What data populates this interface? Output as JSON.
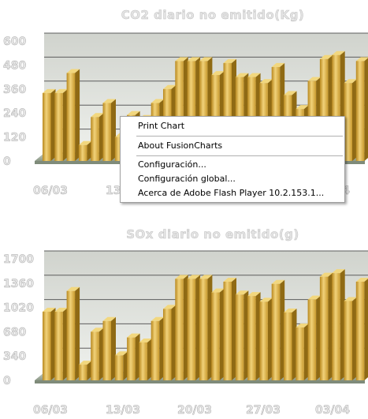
{
  "chart_data": [
    {
      "type": "bar",
      "title": "CO2 diario no emitido(Kg)",
      "ylim": [
        0,
        600
      ],
      "yticks": [
        "0",
        "120",
        "240",
        "360",
        "480",
        "600"
      ],
      "x_tick_labels": [
        "06/03",
        "13/03",
        "20/03",
        "27/03",
        "03/04"
      ],
      "values": [
        340,
        340,
        440,
        80,
        220,
        290,
        120,
        230,
        210,
        290,
        360,
        500,
        500,
        500,
        430,
        490,
        420,
        420,
        390,
        470,
        330,
        260,
        400,
        510,
        530,
        390,
        500,
        30
      ]
    },
    {
      "type": "bar",
      "title": "SOx diario no emitido(g)",
      "ylim": [
        0,
        1700
      ],
      "yticks": [
        "0",
        "340",
        "680",
        "1020",
        "1360",
        "1700"
      ],
      "x_tick_labels": [
        "06/03",
        "13/03",
        "20/03",
        "27/03",
        "03/04"
      ],
      "values": [
        960,
        960,
        1250,
        220,
        680,
        830,
        350,
        600,
        530,
        830,
        1000,
        1420,
        1420,
        1420,
        1230,
        1380,
        1200,
        1180,
        1100,
        1350,
        950,
        740,
        1130,
        1450,
        1500,
        1110,
        1380,
        90
      ]
    }
  ],
  "context_menu": {
    "items": [
      "Print Chart",
      "About FusionCharts",
      "Configuración...",
      "Configuración global...",
      "Acerca de Adobe Flash Player 10.2.153.1..."
    ]
  },
  "colors": {
    "bar_front": "#d8ad3c",
    "bar_side": "#8f6a14",
    "bar_top": "#f2d77e",
    "canvas": "#e2e4e0",
    "floor": "#a7b2a1"
  }
}
